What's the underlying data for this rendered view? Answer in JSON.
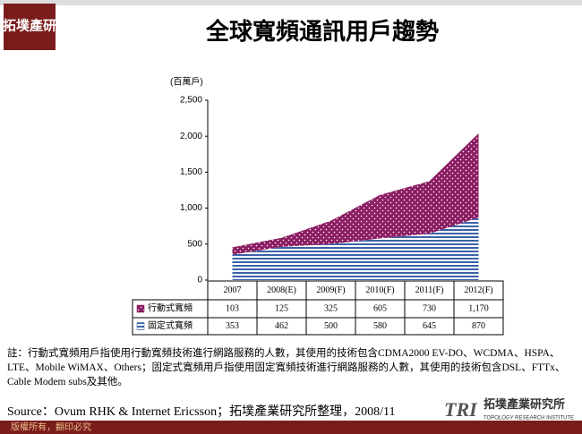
{
  "logo": "拓墣產研",
  "chart_data": {
    "type": "stacked-area",
    "title": "全球寬頻通訊用戶趨勢",
    "y_label": "(百萬戶)",
    "categories": [
      "2007",
      "2008(E)",
      "2009(F)",
      "2010(F)",
      "2011(F)",
      "2012(F)"
    ],
    "series": [
      {
        "name": "行動式寬頻",
        "color": "#8c1d63",
        "values": [
          103,
          125,
          325,
          605,
          730,
          1170
        ],
        "value_labels": [
          "103",
          "125",
          "325",
          "605",
          "730",
          "1,170"
        ]
      },
      {
        "name": "固定式寬頻",
        "color": "#3b62a8",
        "values": [
          353,
          462,
          500,
          580,
          645,
          870
        ]
      }
    ],
    "ylim": [
      0,
      2500
    ],
    "yticks": [
      0,
      500,
      {
        "value": 1000,
        "label": "1,000"
      },
      {
        "value": 1500,
        "label": "1,500"
      },
      {
        "value": 2000,
        "label": "2,000"
      },
      {
        "value": 2500,
        "label": "2,500"
      }
    ]
  },
  "note": "註：行動式寬頻用戶指使用行動寬頻技術進行網路服務的人數，其使用的技術包含CDMA2000 EV-DO、WCDMA、HSPA、LTE、Mobile WiMAX、Others；固定式寬頻用戶指使用固定寬頻技術進行網路服務的人數，其使用的技術包含DSL、FTTx、Cable Modem subs及其他。",
  "source": "Source：Ovum RHK & Internet Ericsson；拓墣產業研究所整理，2008/11",
  "footer": "版權所有，翻印必究",
  "brand": {
    "mark": "TRI",
    "name": "拓墣產業研究所",
    "english": "TOPOLOGY RESEARCH INSTITUTE"
  }
}
